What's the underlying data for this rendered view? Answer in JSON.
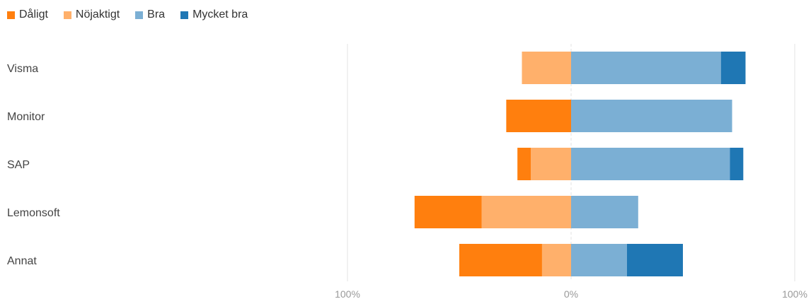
{
  "chart_data": {
    "type": "bar",
    "orientation": "horizontal",
    "stacked": "diverging",
    "categories": [
      "Visma",
      "Monitor",
      "SAP",
      "Lemonsoft",
      "Annat"
    ],
    "series": [
      {
        "name": "Dåligt",
        "color": "#ff7f0e",
        "side": "negative",
        "values": [
          0,
          29,
          6,
          30,
          37
        ]
      },
      {
        "name": "Nöjaktigt",
        "color": "#ffb06b",
        "side": "negative",
        "values": [
          22,
          0,
          18,
          40,
          13
        ]
      },
      {
        "name": "Bra",
        "color": "#7bafd4",
        "side": "positive",
        "values": [
          67,
          72,
          71,
          30,
          25
        ]
      },
      {
        "name": "Mycket bra",
        "color": "#1f77b4",
        "side": "positive",
        "values": [
          11,
          0,
          6,
          0,
          25
        ]
      }
    ],
    "xlim": [
      -100,
      100
    ],
    "x_ticks": [
      "100%",
      "0%",
      "100%"
    ],
    "legend_position": "top-left",
    "grid": true
  }
}
